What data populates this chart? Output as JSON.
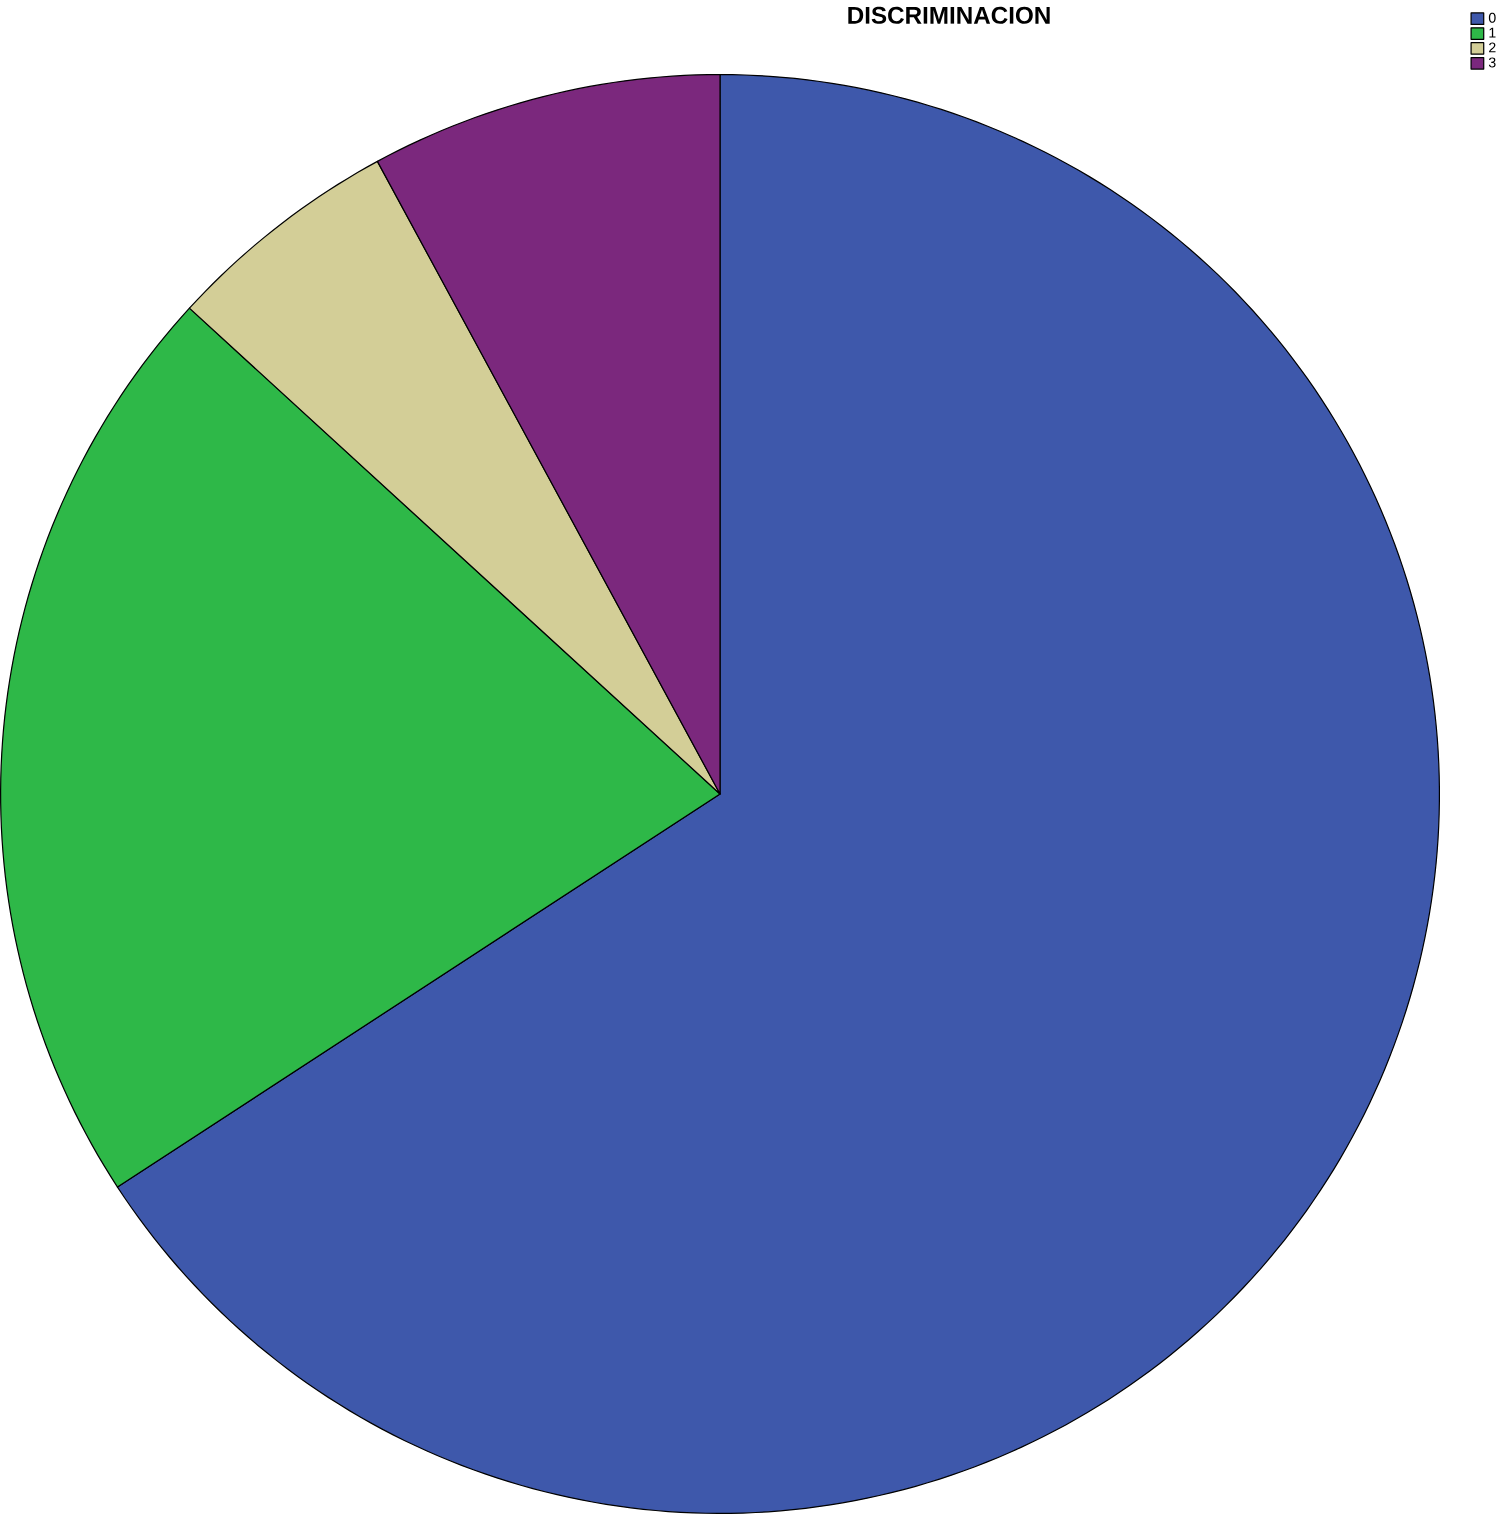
{
  "chart_data": {
    "type": "pie",
    "title": "DISCRIMINACION",
    "categories": [
      "0",
      "1",
      "2",
      "3"
    ],
    "values": [
      65.8,
      21.0,
      5.3,
      7.9
    ],
    "colors": [
      "#3e58ab",
      "#2eb848",
      "#d3ce97",
      "#7b287d"
    ],
    "legend": "top right"
  }
}
